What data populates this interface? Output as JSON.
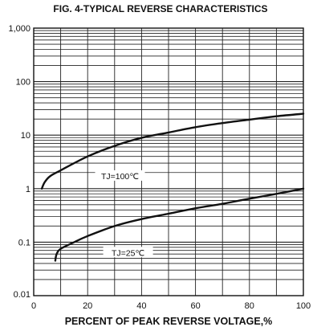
{
  "chart_data": {
    "type": "line",
    "title": "FIG. 4-TYPICAL REVERSE CHARACTERISTICS",
    "xlabel": "PERCENT OF PEAK REVERSE VOLTAGE,%",
    "ylabel": "",
    "xlim": [
      0,
      100
    ],
    "ylim": [
      0.01,
      1000
    ],
    "y_scale": "log",
    "grid": true,
    "x_ticks": [
      0,
      20,
      40,
      60,
      80,
      100
    ],
    "x_tick_labels": [
      "0",
      "20",
      "40",
      "60",
      "80",
      "100"
    ],
    "y_ticks": [
      0.01,
      0.1,
      1,
      10,
      100,
      1000
    ],
    "y_tick_labels": [
      "0.01",
      "0.1",
      "1",
      "10",
      "100",
      "1,000"
    ],
    "series": [
      {
        "name": "TJ=100℃",
        "label_at": {
          "x": 32,
          "y": 1.7
        },
        "points": [
          {
            "x": 3,
            "y": 1.0
          },
          {
            "x": 4,
            "y": 1.3
          },
          {
            "x": 6,
            "y": 1.7
          },
          {
            "x": 10,
            "y": 2.2
          },
          {
            "x": 20,
            "y": 4.0
          },
          {
            "x": 30,
            "y": 6.3
          },
          {
            "x": 40,
            "y": 8.9
          },
          {
            "x": 50,
            "y": 11.2
          },
          {
            "x": 60,
            "y": 14.1
          },
          {
            "x": 70,
            "y": 16.8
          },
          {
            "x": 80,
            "y": 19.5
          },
          {
            "x": 90,
            "y": 22.5
          },
          {
            "x": 100,
            "y": 25.1
          }
        ]
      },
      {
        "name": "TJ=25℃",
        "label_at": {
          "x": 35,
          "y": 0.063
        },
        "points": [
          {
            "x": 8,
            "y": 0.045
          },
          {
            "x": 8.5,
            "y": 0.06
          },
          {
            "x": 10,
            "y": 0.075
          },
          {
            "x": 15,
            "y": 0.1
          },
          {
            "x": 20,
            "y": 0.13
          },
          {
            "x": 30,
            "y": 0.2
          },
          {
            "x": 40,
            "y": 0.27
          },
          {
            "x": 50,
            "y": 0.34
          },
          {
            "x": 60,
            "y": 0.43
          },
          {
            "x": 70,
            "y": 0.52
          },
          {
            "x": 80,
            "y": 0.65
          },
          {
            "x": 90,
            "y": 0.8
          },
          {
            "x": 100,
            "y": 1.0
          }
        ]
      }
    ]
  }
}
